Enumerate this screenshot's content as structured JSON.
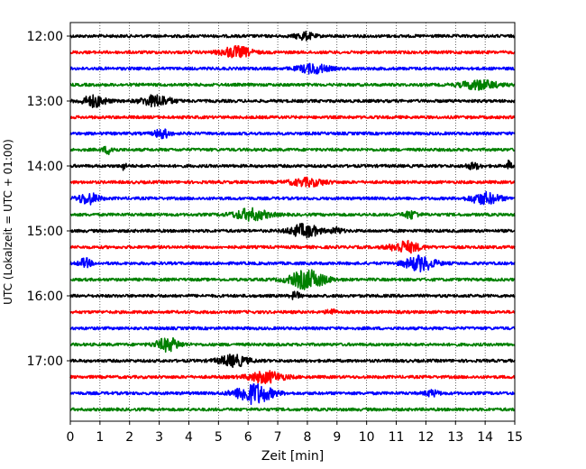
{
  "chart_data": {
    "type": "line",
    "title": "",
    "xlabel": "Zeit  [min]",
    "ylabel": "UTC (Lokalzeit = UTC + 01:00)",
    "xlim": [
      0,
      15
    ],
    "x_ticks": [
      "0",
      "1",
      "2",
      "3",
      "4",
      "5",
      "6",
      "7",
      "8",
      "9",
      "10",
      "11",
      "12",
      "13",
      "14",
      "15"
    ],
    "y_ticks": [
      "12:00",
      "13:00",
      "14:00",
      "15:00",
      "16:00",
      "17:00"
    ],
    "grid": "vertical dotted",
    "trace_start": "12:00",
    "trace_interval_min": 15,
    "trace_colors": [
      "#000000",
      "#ff0000",
      "#0000ff",
      "#008000"
    ],
    "traces": [
      {
        "start": "12:00",
        "color": "#000000",
        "events": [
          [
            7.9,
            0.6,
            4
          ]
        ]
      },
      {
        "start": "12:15",
        "color": "#ff0000",
        "events": [
          [
            5.6,
            1.0,
            6
          ]
        ]
      },
      {
        "start": "12:30",
        "color": "#0000ff",
        "events": [
          [
            8.2,
            1.0,
            5
          ]
        ]
      },
      {
        "start": "12:45",
        "color": "#008000",
        "events": [
          [
            13.8,
            1.2,
            5
          ]
        ]
      },
      {
        "start": "13:00",
        "color": "#000000",
        "events": [
          [
            0.8,
            0.8,
            6
          ],
          [
            2.9,
            1.0,
            6
          ]
        ]
      },
      {
        "start": "13:15",
        "color": "#ff0000",
        "events": []
      },
      {
        "start": "13:30",
        "color": "#0000ff",
        "events": [
          [
            3.1,
            0.5,
            5
          ]
        ]
      },
      {
        "start": "13:45",
        "color": "#008000",
        "events": [
          [
            1.3,
            0.4,
            4
          ]
        ]
      },
      {
        "start": "14:00",
        "color": "#000000",
        "events": [
          [
            1.8,
            0.15,
            4
          ],
          [
            13.6,
            0.5,
            3
          ],
          [
            14.8,
            0.15,
            6
          ]
        ]
      },
      {
        "start": "14:15",
        "color": "#ff0000",
        "events": [
          [
            8.0,
            1.2,
            4
          ]
        ]
      },
      {
        "start": "14:30",
        "color": "#0000ff",
        "events": [
          [
            0.6,
            0.7,
            6
          ],
          [
            14.0,
            1.0,
            6
          ]
        ]
      },
      {
        "start": "14:45",
        "color": "#008000",
        "events": [
          [
            6.1,
            1.2,
            6
          ],
          [
            11.5,
            0.5,
            4
          ]
        ]
      },
      {
        "start": "15:00",
        "color": "#000000",
        "events": [
          [
            7.9,
            1.0,
            7
          ],
          [
            9.0,
            0.4,
            3
          ]
        ]
      },
      {
        "start": "15:15",
        "color": "#ff0000",
        "events": [
          [
            11.3,
            1.0,
            6
          ]
        ]
      },
      {
        "start": "15:30",
        "color": "#0000ff",
        "events": [
          [
            0.5,
            0.4,
            5
          ],
          [
            11.8,
            1.0,
            8
          ]
        ]
      },
      {
        "start": "15:45",
        "color": "#008000",
        "events": [
          [
            8.0,
            1.2,
            10
          ]
        ]
      },
      {
        "start": "16:00",
        "color": "#000000",
        "events": [
          [
            7.6,
            0.3,
            4
          ]
        ]
      },
      {
        "start": "16:15",
        "color": "#ff0000",
        "events": [
          [
            8.8,
            0.3,
            3
          ]
        ]
      },
      {
        "start": "16:30",
        "color": "#0000ff",
        "events": []
      },
      {
        "start": "16:45",
        "color": "#008000",
        "events": [
          [
            3.3,
            0.8,
            7
          ]
        ]
      },
      {
        "start": "17:00",
        "color": "#000000",
        "events": [
          [
            5.5,
            1.0,
            6
          ]
        ]
      },
      {
        "start": "17:15",
        "color": "#ff0000",
        "events": [
          [
            6.6,
            1.2,
            6
          ]
        ]
      },
      {
        "start": "17:30",
        "color": "#0000ff",
        "events": [
          [
            6.2,
            1.2,
            11
          ],
          [
            12.2,
            0.5,
            3
          ]
        ]
      },
      {
        "start": "17:45",
        "color": "#008000",
        "events": []
      }
    ]
  }
}
